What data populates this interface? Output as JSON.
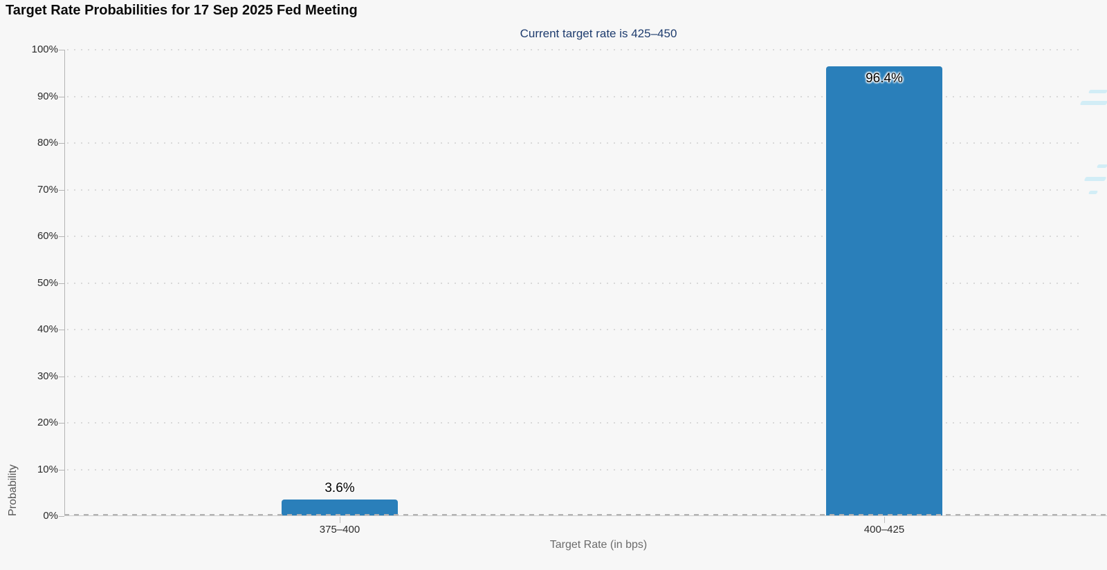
{
  "header": {
    "title": "Target Rate Probabilities for 17 Sep 2025 Fed Meeting",
    "subtitle": "Current target rate is 425–450"
  },
  "chart_data": {
    "type": "bar",
    "title": "Target Rate Probabilities for 17 Sep 2025 Fed Meeting",
    "subtitle": "Current target rate is 425–450",
    "categories": [
      "375–400",
      "400–425"
    ],
    "values": [
      3.6,
      96.4
    ],
    "value_labels": [
      "3.6%",
      "96.4%"
    ],
    "xlabel": "Target Rate (in bps)",
    "ylabel": "Probability",
    "ylim": [
      0,
      100
    ],
    "ytick_step": 10,
    "ytick_labels": [
      "0%",
      "10%",
      "20%",
      "30%",
      "40%",
      "50%",
      "60%",
      "70%",
      "80%",
      "90%",
      "100%"
    ],
    "grid": "dotted-horizontal",
    "legend": "none",
    "colors": {
      "bar": "#2a7fba",
      "background": "#f7f7f7",
      "subtitle_text": "#1e3c6e",
      "title_text": "#0b0b0b",
      "axis": "#b3b3b3",
      "tick_text": "#2b2b2b",
      "axis_title_text": "#6b6b6b",
      "watermark": "#bfe9f6"
    }
  }
}
